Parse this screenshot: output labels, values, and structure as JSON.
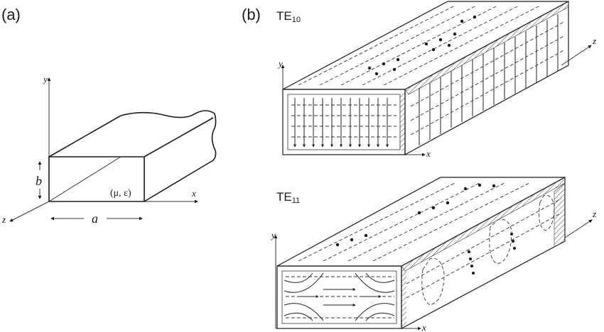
{
  "panel_a": {
    "label": "(a)",
    "axis_x": "x",
    "axis_y": "y",
    "axis_z": "z",
    "dim_b": "b",
    "dim_a": "a",
    "material": "(μ, ε)"
  },
  "panel_b": {
    "label": "(b)",
    "te10": {
      "prefix": "TE",
      "sub": "10",
      "axis_x": "x",
      "axis_y": "y",
      "axis_z": "z"
    },
    "te11": {
      "prefix": "TE",
      "sub": "11",
      "axis_x": "x",
      "axis_y": "y",
      "axis_z": "z"
    }
  }
}
